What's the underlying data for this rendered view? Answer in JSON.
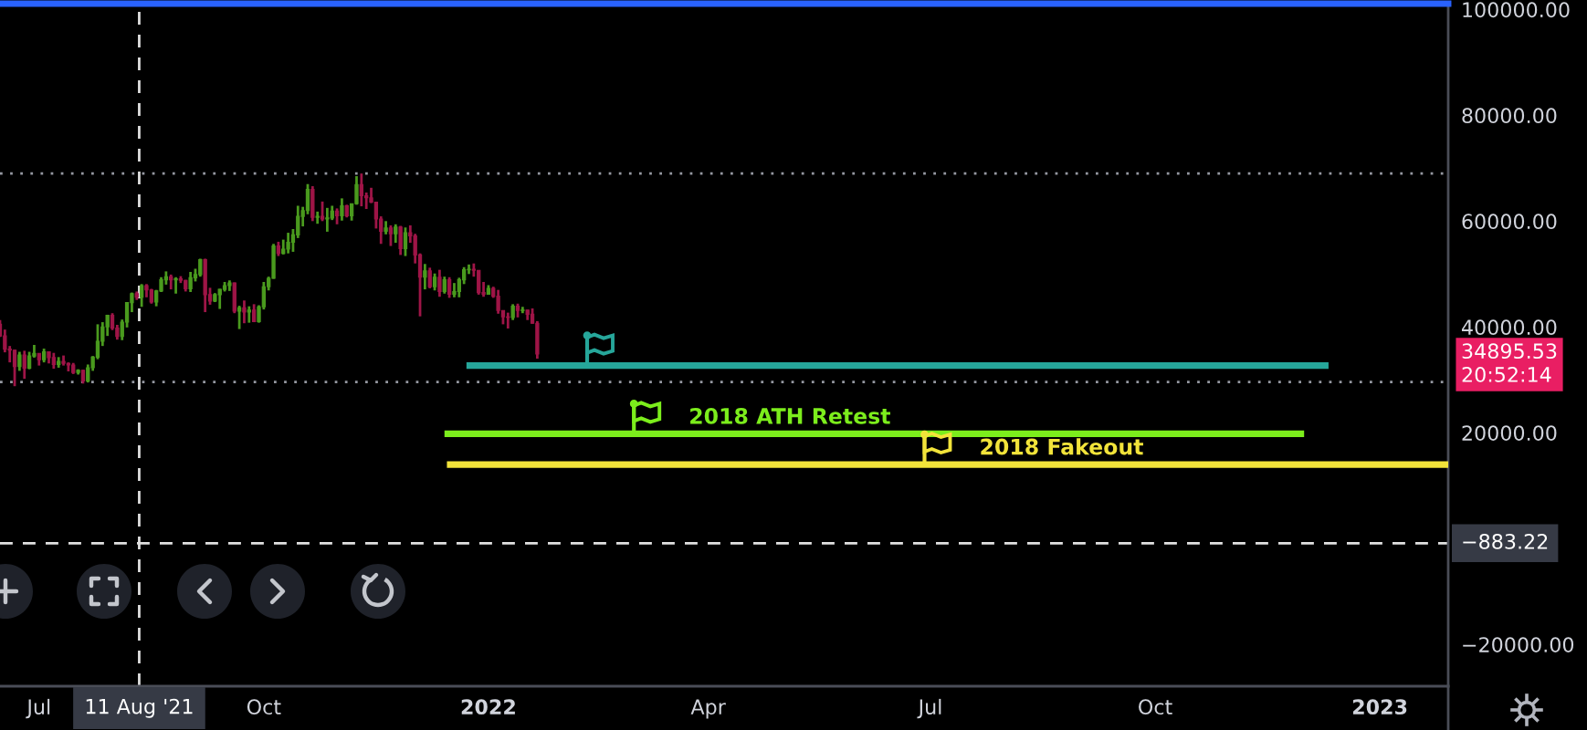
{
  "chart_data": {
    "type": "candlestick",
    "x": [
      "2021-06-15",
      "2021-06-17",
      "2021-06-19",
      "2021-06-21",
      "2021-06-23",
      "2021-06-25",
      "2021-06-27",
      "2021-06-29",
      "2021-07-01",
      "2021-07-03",
      "2021-07-05",
      "2021-07-07",
      "2021-07-09",
      "2021-07-11",
      "2021-07-13",
      "2021-07-15",
      "2021-07-17",
      "2021-07-19",
      "2021-07-21",
      "2021-07-23",
      "2021-07-25",
      "2021-07-27",
      "2021-07-29",
      "2021-07-31",
      "2021-08-02",
      "2021-08-04",
      "2021-08-06",
      "2021-08-08",
      "2021-08-10",
      "2021-08-12",
      "2021-08-14",
      "2021-08-16",
      "2021-08-18",
      "2021-08-20",
      "2021-08-22",
      "2021-08-24",
      "2021-08-26",
      "2021-08-28",
      "2021-08-30",
      "2021-09-01",
      "2021-09-03",
      "2021-09-05",
      "2021-09-07",
      "2021-09-09",
      "2021-09-11",
      "2021-09-13",
      "2021-09-15",
      "2021-09-17",
      "2021-09-19",
      "2021-09-21",
      "2021-09-23",
      "2021-09-25",
      "2021-09-27",
      "2021-09-29",
      "2021-10-01",
      "2021-10-03",
      "2021-10-05",
      "2021-10-07",
      "2021-10-09",
      "2021-10-11",
      "2021-10-13",
      "2021-10-15",
      "2021-10-17",
      "2021-10-19",
      "2021-10-21",
      "2021-10-23",
      "2021-10-25",
      "2021-10-27",
      "2021-10-29",
      "2021-10-31",
      "2021-11-02",
      "2021-11-04",
      "2021-11-06",
      "2021-11-08",
      "2021-11-10",
      "2021-11-12",
      "2021-11-14",
      "2021-11-16",
      "2021-11-18",
      "2021-11-20",
      "2021-11-22",
      "2021-11-24",
      "2021-11-26",
      "2021-11-28",
      "2021-11-30",
      "2021-12-02",
      "2021-12-04",
      "2021-12-06",
      "2021-12-08",
      "2021-12-10",
      "2021-12-12",
      "2021-12-14",
      "2021-12-16",
      "2021-12-18",
      "2021-12-20",
      "2021-12-22",
      "2021-12-24",
      "2021-12-26",
      "2021-12-28",
      "2021-12-30",
      "2022-01-01",
      "2022-01-03",
      "2022-01-05",
      "2022-01-07",
      "2022-01-09",
      "2022-01-11",
      "2022-01-13",
      "2022-01-15",
      "2022-01-17",
      "2022-01-19",
      "2022-01-21"
    ],
    "ohlc": [
      [
        40500,
        41300,
        38100,
        38300
      ],
      [
        38300,
        39500,
        35200,
        35800
      ],
      [
        35800,
        36400,
        33300,
        35600
      ],
      [
        35600,
        35700,
        28800,
        32500
      ],
      [
        32500,
        35300,
        31700,
        34700
      ],
      [
        34700,
        35500,
        30200,
        32200
      ],
      [
        32200,
        35300,
        32000,
        34500
      ],
      [
        34500,
        36600,
        34200,
        35000
      ],
      [
        35000,
        35000,
        32700,
        33800
      ],
      [
        33800,
        35900,
        33300,
        35300
      ],
      [
        35300,
        35300,
        33100,
        34200
      ],
      [
        34200,
        35100,
        32100,
        32900
      ],
      [
        32900,
        34300,
        32300,
        33500
      ],
      [
        33500,
        34600,
        32700,
        33100
      ],
      [
        33100,
        33300,
        31600,
        32800
      ],
      [
        32800,
        33200,
        31100,
        31400
      ],
      [
        31400,
        32000,
        31000,
        31800
      ],
      [
        31800,
        31900,
        29300,
        29800
      ],
      [
        29800,
        32900,
        29500,
        32300
      ],
      [
        32300,
        34500,
        31700,
        34300
      ],
      [
        34300,
        40500,
        33900,
        37300
      ],
      [
        37300,
        40900,
        36400,
        40000
      ],
      [
        40000,
        42300,
        38300,
        42200
      ],
      [
        42200,
        42600,
        39400,
        39800
      ],
      [
        39800,
        40400,
        37600,
        38200
      ],
      [
        38200,
        41400,
        37500,
        40900
      ],
      [
        40900,
        44700,
        39900,
        44600
      ],
      [
        44600,
        46500,
        42800,
        46300
      ],
      [
        46300,
        46700,
        45100,
        45600
      ],
      [
        45600,
        48100,
        43800,
        47800
      ],
      [
        47800,
        48100,
        45600,
        47000
      ],
      [
        47000,
        47200,
        44400,
        44700
      ],
      [
        44700,
        47000,
        43900,
        46800
      ],
      [
        46800,
        49400,
        46600,
        48900
      ],
      [
        48900,
        50500,
        48000,
        49500
      ],
      [
        49500,
        49900,
        47100,
        48900
      ],
      [
        48900,
        49400,
        46300,
        49100
      ],
      [
        49100,
        49600,
        48300,
        48800
      ],
      [
        48800,
        48900,
        46700,
        47200
      ],
      [
        47200,
        50400,
        46600,
        49300
      ],
      [
        49300,
        51000,
        48600,
        49900
      ],
      [
        49900,
        52900,
        49500,
        52700
      ],
      [
        52700,
        52900,
        42800,
        46100
      ],
      [
        46100,
        47400,
        44200,
        44900
      ],
      [
        44900,
        46400,
        44700,
        46100
      ],
      [
        46100,
        47200,
        43400,
        47100
      ],
      [
        47100,
        48500,
        46700,
        47800
      ],
      [
        47800,
        48800,
        46800,
        48300
      ],
      [
        48300,
        48400,
        42600,
        43000
      ],
      [
        43000,
        44000,
        39600,
        43600
      ],
      [
        43600,
        45000,
        40700,
        42800
      ],
      [
        42800,
        43900,
        40800,
        43200
      ],
      [
        43200,
        44300,
        40900,
        41000
      ],
      [
        41000,
        44100,
        40800,
        43800
      ],
      [
        43800,
        48500,
        43300,
        47600
      ],
      [
        47600,
        49500,
        46900,
        49200
      ],
      [
        49200,
        55700,
        49100,
        55300
      ],
      [
        55300,
        56100,
        53400,
        53900
      ],
      [
        53900,
        56500,
        53700,
        54700
      ],
      [
        54700,
        57800,
        53900,
        56000
      ],
      [
        56000,
        58500,
        54200,
        57400
      ],
      [
        57400,
        62900,
        56800,
        60900
      ],
      [
        60900,
        62700,
        59000,
        62000
      ],
      [
        62000,
        67000,
        61300,
        66000
      ],
      [
        66000,
        66600,
        60000,
        60700
      ],
      [
        60700,
        61800,
        59500,
        60900
      ],
      [
        60900,
        63700,
        60000,
        60400
      ],
      [
        60400,
        62500,
        58000,
        60600
      ],
      [
        60600,
        62900,
        60200,
        61900
      ],
      [
        61900,
        62400,
        59400,
        61000
      ],
      [
        61000,
        64300,
        60100,
        62900
      ],
      [
        62900,
        63100,
        60700,
        61000
      ],
      [
        61000,
        63300,
        60100,
        63300
      ],
      [
        63300,
        68500,
        63100,
        66900
      ],
      [
        66900,
        69000,
        62800,
        64800
      ],
      [
        64800,
        65400,
        62300,
        64400
      ],
      [
        64400,
        66300,
        63400,
        63600
      ],
      [
        63600,
        63600,
        58600,
        60400
      ],
      [
        60400,
        60900,
        55700,
        58100
      ],
      [
        58100,
        60000,
        57500,
        58700
      ],
      [
        58700,
        59200,
        55300,
        57600
      ],
      [
        57600,
        59400,
        55900,
        58900
      ],
      [
        58900,
        59100,
        53600,
        54800
      ],
      [
        54800,
        58800,
        53400,
        57800
      ],
      [
        57800,
        59200,
        55900,
        57200
      ],
      [
        57200,
        57600,
        52000,
        53600
      ],
      [
        53600,
        53900,
        42000,
        49400
      ],
      [
        49400,
        51900,
        47100,
        50600
      ],
      [
        50600,
        51200,
        47300,
        47600
      ],
      [
        47600,
        50100,
        46900,
        49400
      ],
      [
        49400,
        50800,
        45700,
        46700
      ],
      [
        46700,
        49500,
        46300,
        48900
      ],
      [
        48900,
        49400,
        45500,
        46200
      ],
      [
        46200,
        48300,
        45600,
        46700
      ],
      [
        46700,
        49300,
        45600,
        48900
      ],
      [
        48900,
        51300,
        48100,
        50800
      ],
      [
        50800,
        51800,
        50000,
        50900
      ],
      [
        50900,
        52000,
        49500,
        50700
      ],
      [
        50700,
        50700,
        46100,
        46500
      ],
      [
        46500,
        48500,
        45700,
        46200
      ],
      [
        46200,
        47900,
        46200,
        47300
      ],
      [
        47300,
        47600,
        45500,
        45800
      ],
      [
        45800,
        47000,
        42500,
        43100
      ],
      [
        43100,
        43100,
        40500,
        41900
      ],
      [
        41900,
        42700,
        39700,
        41800
      ],
      [
        41800,
        44300,
        41300,
        43900
      ],
      [
        43900,
        44400,
        41800,
        43100
      ],
      [
        43100,
        43800,
        42600,
        43200
      ],
      [
        43200,
        43200,
        41300,
        42400
      ],
      [
        42400,
        43500,
        40600,
        40700
      ],
      [
        40700,
        41100,
        34000,
        34895.53
      ]
    ],
    "colors": [
      "#9e1547",
      "#9e1547",
      "#9e1547",
      "#9e1547",
      "#4a9a1e",
      "#9e1547",
      "#4a9a1e",
      "#4a9a1e",
      "#9e1547",
      "#4a9a1e",
      "#9e1547",
      "#9e1547",
      "#4a9a1e",
      "#9e1547",
      "#9e1547",
      "#9e1547",
      "#4a9a1e",
      "#9e1547",
      "#4a9a1e",
      "#4a9a1e",
      "#4a9a1e",
      "#4a9a1e",
      "#4a9a1e",
      "#9e1547",
      "#9e1547",
      "#4a9a1e",
      "#4a9a1e",
      "#4a9a1e",
      "#9e1547",
      "#4a9a1e",
      "#9e1547",
      "#9e1547",
      "#4a9a1e",
      "#4a9a1e",
      "#4a9a1e",
      "#9e1547",
      "#4a9a1e",
      "#9e1547",
      "#9e1547",
      "#4a9a1e",
      "#4a9a1e",
      "#4a9a1e",
      "#9e1547",
      "#9e1547",
      "#4a9a1e",
      "#4a9a1e",
      "#4a9a1e",
      "#4a9a1e",
      "#9e1547",
      "#4a9a1e",
      "#9e1547",
      "#4a9a1e",
      "#9e1547",
      "#4a9a1e",
      "#4a9a1e",
      "#4a9a1e",
      "#4a9a1e",
      "#9e1547",
      "#4a9a1e",
      "#4a9a1e",
      "#4a9a1e",
      "#4a9a1e",
      "#4a9a1e",
      "#4a9a1e",
      "#9e1547",
      "#4a9a1e",
      "#9e1547",
      "#4a9a1e",
      "#4a9a1e",
      "#9e1547",
      "#4a9a1e",
      "#9e1547",
      "#4a9a1e",
      "#4a9a1e",
      "#9e1547",
      "#9e1547",
      "#9e1547",
      "#9e1547",
      "#9e1547",
      "#4a9a1e",
      "#9e1547",
      "#4a9a1e",
      "#9e1547",
      "#4a9a1e",
      "#9e1547",
      "#9e1547",
      "#9e1547",
      "#4a9a1e",
      "#9e1547",
      "#4a9a1e",
      "#9e1547",
      "#4a9a1e",
      "#9e1547",
      "#4a9a1e",
      "#4a9a1e",
      "#4a9a1e",
      "#4a9a1e",
      "#9e1547",
      "#9e1547",
      "#9e1547",
      "#4a9a1e",
      "#9e1547",
      "#9e1547",
      "#9e1547",
      "#9e1547",
      "#4a9a1e",
      "#9e1547",
      "#4a9a1e",
      "#9e1547",
      "#9e1547",
      "#9e1547"
    ],
    "series": [
      {
        "type": "line",
        "x": [
          "2021-12-23",
          "2022-12-11"
        ],
        "values": [
          32700,
          32700
        ],
        "color": "#26a69a"
      },
      {
        "type": "line",
        "x": [
          "2021-12-14",
          "2022-12-01"
        ],
        "values": [
          19800,
          19800
        ],
        "color": "#7ced1c"
      },
      {
        "type": "line",
        "x": [
          "2021-12-15",
          "2023-01-29"
        ],
        "values": [
          14000,
          14000
        ],
        "color": "#f2e33a"
      }
    ],
    "xlim": [
      "2021-06-15",
      "2023-01-29"
    ],
    "ylim": [
      -27900,
      101100
    ],
    "xticks": [
      {
        "value": "2021-07-01",
        "label": "Jul"
      },
      {
        "value": "2021-10-01",
        "label": "Oct"
      },
      {
        "value": "2022-01-01",
        "label": "2022"
      },
      {
        "value": "2022-04-01",
        "label": "Apr"
      },
      {
        "value": "2022-07-01",
        "label": "Jul"
      },
      {
        "value": "2022-10-01",
        "label": "Oct"
      },
      {
        "value": "2023-01-01",
        "label": "2023"
      }
    ],
    "yticks": [
      {
        "value": 100000,
        "label": "100000.00"
      },
      {
        "value": 80000,
        "label": "80000.00"
      },
      {
        "value": 60000,
        "label": "60000.00"
      },
      {
        "value": 40000,
        "label": "40000.00"
      },
      {
        "value": 20000,
        "label": "20000.00"
      },
      {
        "value": -20000,
        "label": "−20000.00"
      }
    ],
    "ref_lines": [
      {
        "axis": "y",
        "value": 69000,
        "color": "#9598a1",
        "line_style": "dotted"
      },
      {
        "axis": "y",
        "value": 29600,
        "color": "#9598a1",
        "line_style": "dotted"
      },
      {
        "axis": "x",
        "value": "2021-08-11",
        "label": "11 Aug '21",
        "color": "#e0e0e0",
        "line_style": "dashed"
      },
      {
        "axis": "y",
        "value": -883.22,
        "label": "−883.22",
        "color": "#e0e0e0",
        "line_style": "dashed"
      }
    ],
    "annotations": [
      {
        "text": "2018 ATH Retest",
        "x": "2022-03-24",
        "y": 19800
      },
      {
        "text": "2018 Fakeout",
        "x": "2022-07-21",
        "y": 14000
      },
      "34895.53\n20:52:14"
    ]
  }
}
